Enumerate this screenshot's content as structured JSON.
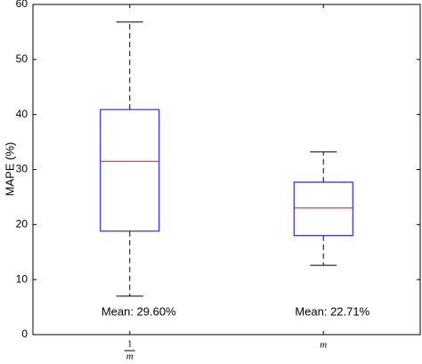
{
  "chart_data": {
    "type": "box",
    "ylabel": "MAPE (%)",
    "categories": [
      {
        "numerator": "1",
        "denominator": "m"
      },
      "m"
    ],
    "boxes": [
      {
        "whisker_low": 7.0,
        "q1": 18.8,
        "median": 31.5,
        "q3": 40.9,
        "whisker_high": 56.8
      },
      {
        "whisker_low": 12.6,
        "q1": 18.0,
        "median": 23.0,
        "q3": 27.7,
        "whisker_high": 33.2
      }
    ],
    "box_color": "#0000ff",
    "median_color": "#ff0000",
    "whisker_color": "#000000",
    "annotations": [
      "Mean: 29.60%",
      "Mean: 22.71%"
    ],
    "ylim": [
      0,
      60
    ],
    "yticks": [
      0,
      10,
      20,
      30,
      40,
      50,
      60
    ],
    "grid": false
  }
}
